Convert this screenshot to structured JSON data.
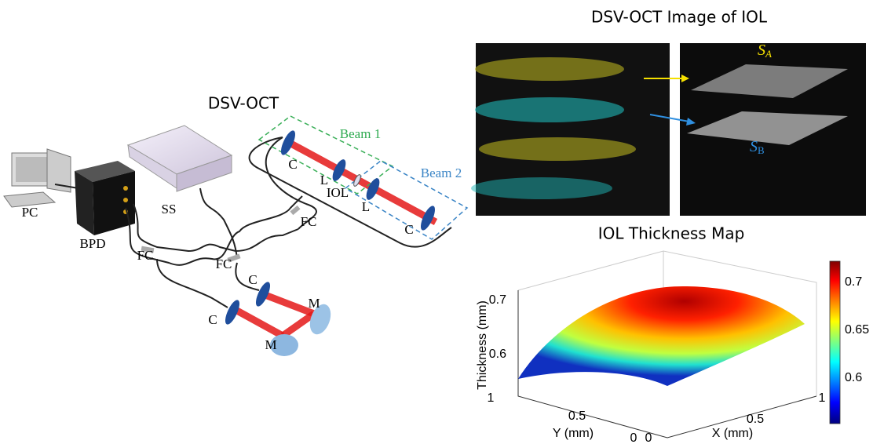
{
  "setup": {
    "title": "DSV-OCT",
    "labels": {
      "pc": "PC",
      "bpd": "BPD",
      "ss": "SS",
      "fc_left": "FC",
      "fc_middle": "FC",
      "fc_sample": "FC",
      "collimator_sample_1": "C",
      "lens_1": "L",
      "iol": "IOL",
      "lens_2": "L",
      "collimator_sample_2": "C",
      "collimator_ref_1": "C",
      "collimator_ref_2": "C",
      "mirror_1": "M",
      "mirror_2": "M",
      "beam_1": "Beam 1",
      "beam_2": "Beam 2"
    }
  },
  "oct_image": {
    "title": "DSV-OCT Image of IOL",
    "surface_a": {
      "symbol": "S",
      "subscript": "A"
    },
    "surface_b": {
      "symbol": "S",
      "subscript": "B"
    }
  },
  "thickness_map": {
    "title": "IOL Thickness Map",
    "z_label": "Thickness (mm)",
    "y_label": "Y (mm)",
    "x_label": "X (mm)",
    "z_ticks": [
      "0.6",
      "0.7"
    ],
    "y_ticks": [
      "1",
      "0.5",
      "0"
    ],
    "x_ticks": [
      "0",
      "0.5",
      "1"
    ],
    "colorbar_ticks": [
      "0.6",
      "0.65",
      "0.7"
    ]
  }
}
